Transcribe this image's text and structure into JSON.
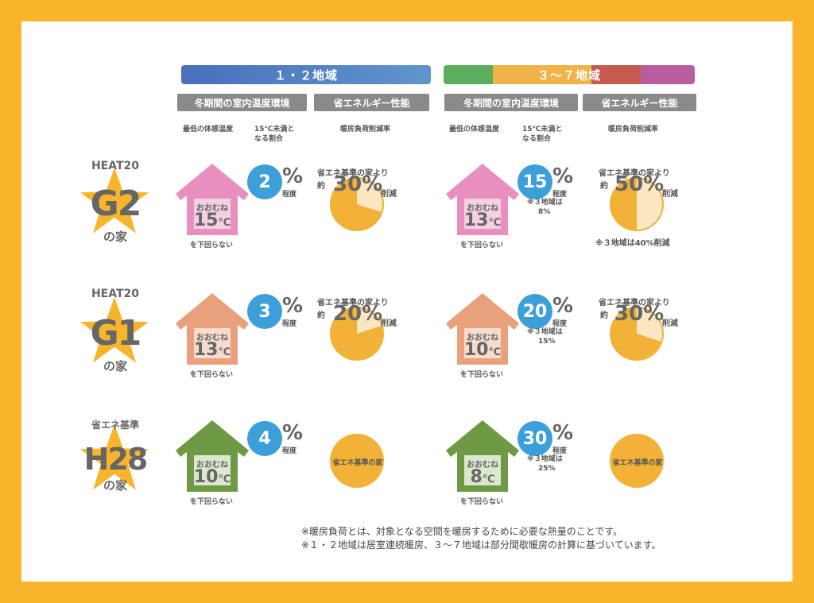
{
  "colors": {
    "frame": "#f8b52b",
    "blue": "#3c9fda",
    "pink": "#e88fbf",
    "salmon": "#e9a07c",
    "green": "#6e9a45",
    "pie": "#f2b137",
    "pieLight": "#fbe8c2"
  },
  "region12": {
    "label": "１・２地域"
  },
  "region37": {
    "label": "３～７地域"
  },
  "headers": {
    "indoor": "冬期間の室内温度環境",
    "energy": "省エネルギー性能"
  },
  "subheaders": {
    "min_temp": "最低の体感温度",
    "ratio_line1": "15℃未満と",
    "ratio_line2": "なる割合",
    "reduction": "暖房負荷削減率"
  },
  "common": {
    "omune": "おおむね",
    "celsius": "℃",
    "below": "を下回らない",
    "teido": "程度",
    "percent": "%",
    "base_line1": "省エネ基準の家より",
    "yaku": "約",
    "sakugen": "削減",
    "base_house": "省エネ基準の家"
  },
  "rows": [
    {
      "key": "g2",
      "top": "HEAT20",
      "big": "G2",
      "no": "の家",
      "r12": {
        "temp": "15",
        "ratio": "2",
        "reduction": "30%",
        "pie": 0.3
      },
      "r37": {
        "temp": "13",
        "ratio": "15",
        "note1": "※３地域は",
        "note2": "8%",
        "reduction": "50%",
        "pie": 0.5,
        "pienote": "※３地域は40%削減"
      }
    },
    {
      "key": "g1",
      "top": "HEAT20",
      "big": "G1",
      "no": "の家",
      "r12": {
        "temp": "13",
        "ratio": "3",
        "reduction": "20%",
        "pie": 0.2
      },
      "r37": {
        "temp": "10",
        "ratio": "20",
        "note1": "※３地域は",
        "note2": "15%",
        "reduction": "30%",
        "pie": 0.3
      }
    },
    {
      "key": "h28",
      "top": "省エネ基準",
      "big": "H28",
      "no": "の家",
      "r12": {
        "temp": "10",
        "ratio": "4"
      },
      "r37": {
        "temp": "8",
        "ratio": "30",
        "note1": "※３地域は",
        "note2": "25%"
      }
    }
  ],
  "footnotes": {
    "line1": "※暖房負荷とは、対象となる空間を暖房するために必要な熱量のことです。",
    "line2": "※１・２地域は居室連続暖房、３～７地域は部分間歇暖房の計算に基づいています。"
  }
}
